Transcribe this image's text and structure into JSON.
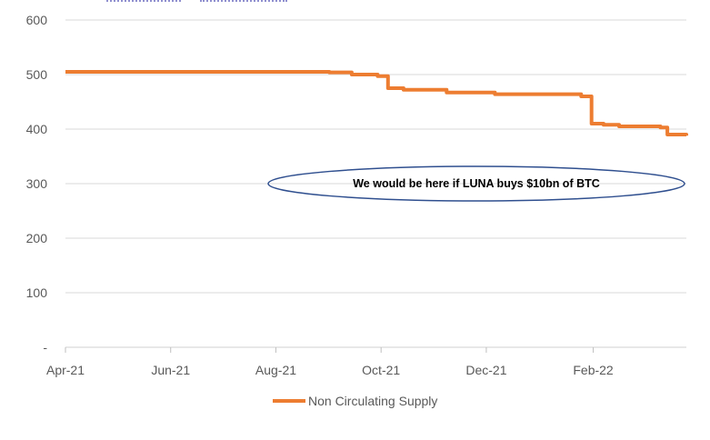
{
  "chart_data": {
    "type": "line",
    "title": "",
    "xlabel": "",
    "ylabel": "",
    "ylim": [
      0,
      600
    ],
    "y_ticks": [
      "-",
      "100",
      "200",
      "300",
      "400",
      "500",
      "600"
    ],
    "x_ticks": [
      "Apr-21",
      "Jun-21",
      "Aug-21",
      "Oct-21",
      "Dec-21",
      "Feb-22"
    ],
    "grid": "horizontal",
    "legend_position": "bottom",
    "series": [
      {
        "name": "Non Circulating Supply",
        "color": "#ED7D31",
        "x": [
          "2021-04-01",
          "2021-06-01",
          "2021-08-01",
          "2021-08-20",
          "2021-09-01",
          "2021-09-09",
          "2021-09-14",
          "2021-09-29",
          "2021-10-01",
          "2021-10-05",
          "2021-10-14",
          "2021-11-01",
          "2021-11-08",
          "2021-11-25",
          "2021-12-01",
          "2021-12-06",
          "2022-01-01",
          "2022-01-25",
          "2022-01-31",
          "2022-02-07",
          "2022-02-16",
          "2022-02-22",
          "2022-03-12",
          "2022-03-16",
          "2022-03-27"
        ],
        "values": [
          505,
          505,
          505,
          505,
          504,
          504,
          500,
          497,
          497,
          475,
          472,
          472,
          467,
          467,
          467,
          464,
          464,
          460,
          410,
          408,
          405,
          405,
          403,
          390,
          388
        ]
      }
    ],
    "annotations": [
      "We would be here if LUNA buys $10bn of BTC"
    ]
  }
}
